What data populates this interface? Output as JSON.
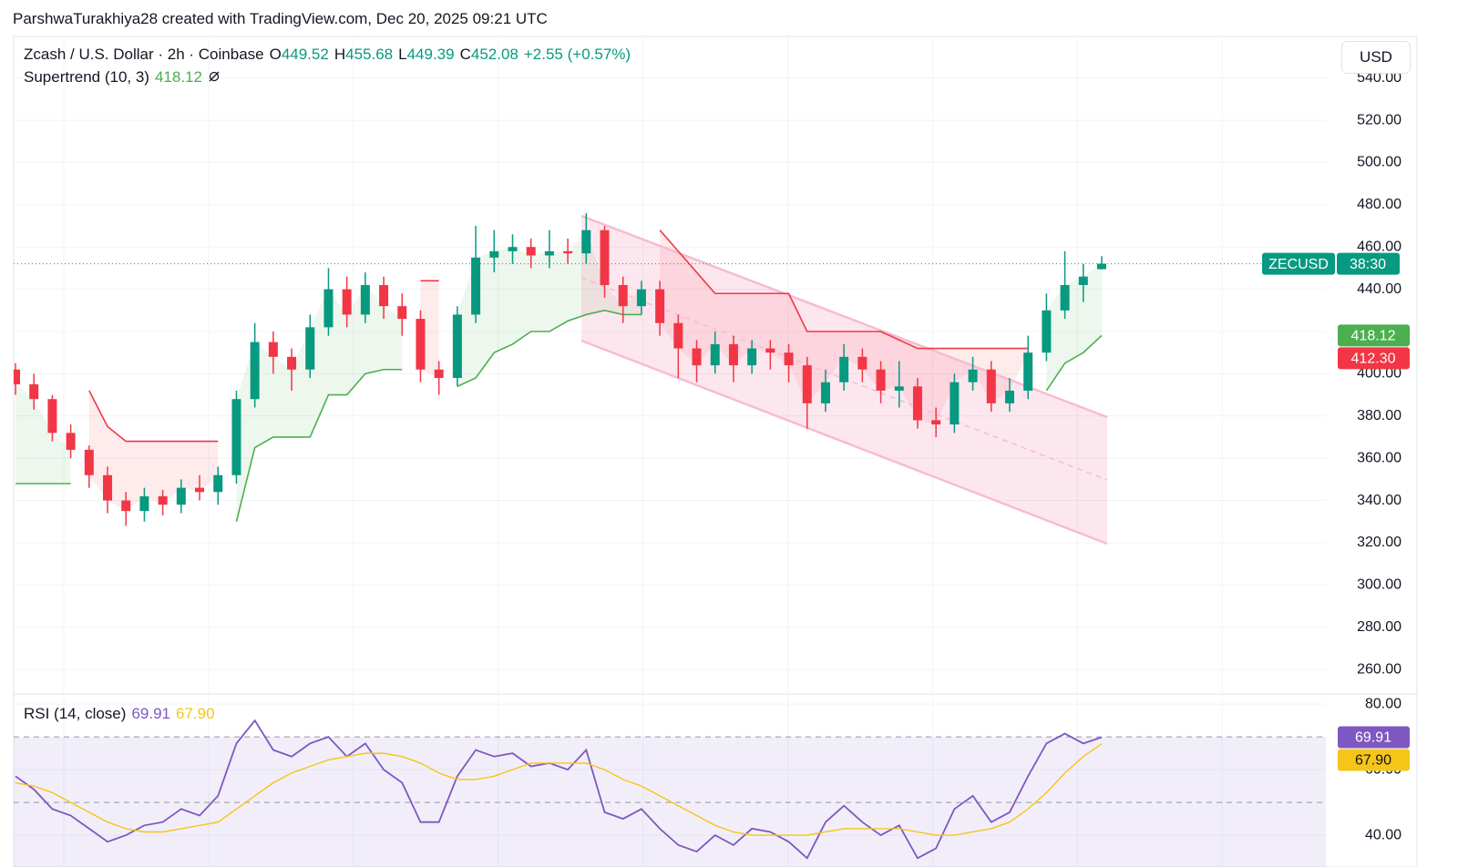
{
  "header": "ParshwaTurakhiya28 created with TradingView.com, Dec 20, 2025 09:21 UTC",
  "currency_button": "USD",
  "chart_data": [
    {
      "type": "candlestick",
      "title": "Zcash / U.S. Dollar · 2h · Coinbase",
      "ohlc_legend": [
        {
          "label": "O",
          "value": "449.52"
        },
        {
          "label": "H",
          "value": "455.68"
        },
        {
          "label": "L",
          "value": "449.39"
        },
        {
          "label": "C",
          "value": "452.08"
        }
      ],
      "change": "+2.55 (+0.57%)",
      "up_color": "#089981",
      "down_color": "#f23645",
      "open": [
        402,
        395,
        388,
        372,
        364,
        352,
        340,
        335,
        342,
        338,
        346,
        344,
        352,
        388,
        415,
        408,
        402,
        422,
        440,
        428,
        442,
        432,
        426,
        402,
        398,
        428,
        455,
        458,
        460,
        456,
        458,
        457,
        468,
        442,
        432,
        440,
        424,
        412,
        404,
        414,
        404,
        412,
        410,
        404,
        386,
        396,
        408,
        402,
        392,
        394,
        378,
        376,
        396,
        402,
        386,
        392,
        410,
        430,
        442,
        449.52
      ],
      "high": [
        405,
        400,
        390,
        376,
        366,
        356,
        344,
        346,
        345,
        350,
        352,
        356,
        392,
        424,
        420,
        412,
        428,
        450,
        446,
        448,
        446,
        438,
        430,
        406,
        432,
        470,
        468,
        466,
        464,
        468,
        464,
        476,
        470,
        446,
        444,
        444,
        428,
        416,
        420,
        418,
        416,
        416,
        414,
        408,
        402,
        414,
        412,
        406,
        406,
        398,
        384,
        400,
        408,
        406,
        398,
        418,
        438,
        458,
        452,
        455.68
      ],
      "low": [
        390,
        383,
        368,
        360,
        346,
        334,
        328,
        330,
        333,
        334,
        340,
        338,
        348,
        384,
        400,
        392,
        398,
        418,
        422,
        424,
        426,
        418,
        396,
        390,
        394,
        424,
        448,
        452,
        450,
        450,
        452,
        452,
        436,
        424,
        428,
        418,
        398,
        396,
        400,
        396,
        400,
        402,
        396,
        374,
        382,
        392,
        396,
        386,
        384,
        374,
        370,
        372,
        392,
        382,
        382,
        388,
        406,
        426,
        434,
        449.39
      ],
      "close": [
        395,
        388,
        372,
        364,
        352,
        340,
        335,
        342,
        338,
        346,
        344,
        352,
        388,
        415,
        408,
        402,
        422,
        440,
        428,
        442,
        432,
        426,
        402,
        398,
        428,
        455,
        458,
        460,
        456,
        458,
        457,
        468,
        442,
        432,
        440,
        424,
        412,
        404,
        414,
        404,
        412,
        410,
        404,
        386,
        396,
        408,
        402,
        392,
        394,
        378,
        376,
        396,
        402,
        386,
        392,
        410,
        430,
        442,
        446,
        452.08
      ],
      "ylim": [
        248.4,
        559.7
      ],
      "yticks": [
        {
          "value": 260,
          "label": "260.00"
        },
        {
          "value": 280,
          "label": "280.00"
        },
        {
          "value": 300,
          "label": "300.00"
        },
        {
          "value": 320,
          "label": "320.00"
        },
        {
          "value": 340,
          "label": "340.00"
        },
        {
          "value": 360,
          "label": "360.00"
        },
        {
          "value": 380,
          "label": "380.00"
        },
        {
          "value": 400,
          "label": "400.00"
        },
        {
          "value": 420,
          "label": "420.00"
        },
        {
          "value": 440,
          "label": "440.00"
        },
        {
          "value": 460,
          "label": "460.00"
        },
        {
          "value": 480,
          "label": "480.00"
        },
        {
          "value": 500,
          "label": "500.00"
        },
        {
          "value": 520,
          "label": "520.00"
        },
        {
          "value": 540,
          "label": "540.00"
        }
      ],
      "grid": true,
      "indicator": {
        "title": "Supertrend (10, 3)",
        "value": "418.12",
        "series": [
          {
            "color": "#4caf50",
            "values": [
              348,
              348,
              348,
              348,
              null,
              null,
              null,
              null,
              null,
              null,
              null,
              null,
              330,
              365,
              370,
              370,
              370,
              390,
              390,
              400,
              402,
              402,
              null,
              null,
              394,
              398,
              410,
              414,
              420,
              420,
              425,
              428,
              430,
              428,
              428,
              null,
              null,
              null,
              null,
              null,
              null,
              null,
              null,
              null,
              null,
              null,
              null,
              null,
              null,
              null,
              null,
              null,
              null,
              null,
              null,
              null,
              392,
              405,
              410,
              418.12
            ]
          },
          {
            "color": "#f23645",
            "values": [
              null,
              null,
              null,
              null,
              392,
              375,
              368,
              368,
              368,
              368,
              368,
              368,
              null,
              null,
              null,
              null,
              null,
              null,
              null,
              null,
              null,
              null,
              444,
              444,
              null,
              null,
              null,
              null,
              null,
              null,
              null,
              null,
              null,
              null,
              null,
              468,
              458,
              448,
              438,
              438,
              438,
              438,
              438,
              420,
              420,
              420,
              420,
              420,
              416,
              412,
              412,
              412,
              412,
              412,
              412,
              412,
              null,
              null,
              null,
              null
            ]
          }
        ]
      },
      "price_tags": [
        {
          "value": 452.08,
          "label": "ZECUSD",
          "countdown": "38:30",
          "color": "#089981"
        },
        {
          "value": 418.12,
          "label": "418.12",
          "color": "#4caf50"
        },
        {
          "value": 412.3,
          "label": "412.30",
          "color": "#f23645"
        }
      ]
    },
    {
      "type": "line",
      "title": "RSI (14, close)",
      "legend_values": [
        "69.91",
        "67.90"
      ],
      "series": [
        {
          "color": "#7e57c2",
          "values": [
            58,
            54,
            48,
            46,
            42,
            38,
            40,
            43,
            44,
            48,
            46,
            52,
            68,
            75,
            66,
            64,
            68,
            70,
            64,
            68,
            60,
            56,
            44,
            44,
            58,
            66,
            64,
            65,
            61,
            62,
            60,
            66,
            47,
            45,
            48,
            42,
            37,
            35,
            40,
            37,
            42,
            41,
            38,
            33,
            44,
            49,
            44,
            40,
            43,
            33,
            36,
            48,
            52,
            44,
            47,
            58,
            68,
            71,
            68,
            69.91
          ]
        },
        {
          "color": "#f5c518",
          "values": [
            56,
            55,
            53,
            50,
            47,
            44,
            42,
            41,
            41,
            42,
            43,
            44,
            48,
            52,
            56,
            59,
            61,
            63,
            64,
            65,
            65,
            64,
            62,
            59,
            57,
            57,
            58,
            60,
            62,
            62,
            62,
            62,
            60,
            57,
            55,
            52,
            49,
            46,
            43,
            41,
            40,
            40,
            40,
            40,
            41,
            42,
            42,
            42,
            42,
            41,
            40,
            40,
            41,
            42,
            44,
            48,
            53,
            59,
            64,
            67.9
          ]
        }
      ],
      "ylim": [
        30.3,
        83.1
      ],
      "yticks": [
        {
          "value": 40,
          "label": "40.00"
        },
        {
          "value": 60,
          "label": "60.00"
        },
        {
          "value": 80,
          "label": "80.00"
        }
      ],
      "levels": [
        30,
        50,
        70
      ],
      "price_tags": [
        {
          "value": 69.91,
          "label": "69.91",
          "color": "#7e57c2"
        },
        {
          "value": 67.9,
          "label": "67.90",
          "color": "#f5c518"
        }
      ]
    }
  ]
}
